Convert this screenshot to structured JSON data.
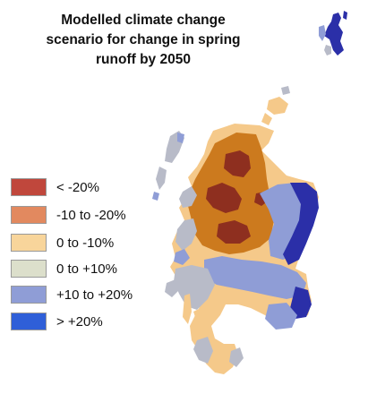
{
  "title": {
    "line1": "Modelled climate change",
    "line2": "scenario for change in spring",
    "line3": "runoff by 2050"
  },
  "legend": [
    {
      "label": "< -20%",
      "color": "#c0473c"
    },
    {
      "label": "-10 to -20%",
      "color": "#e2895f"
    },
    {
      "label": "0 to -10%",
      "color": "#f8d59b"
    },
    {
      "label": "0 to +10%",
      "color": "#dcdfcb"
    },
    {
      "label": "+10 to +20%",
      "color": "#8f9dd6"
    },
    {
      "label": "> +20%",
      "color": "#2f5fd8"
    }
  ],
  "map_colors": {
    "dark_red": "#8e2f1f",
    "orange": "#cc7a1e",
    "light_orange": "#f5c98a",
    "grey": "#b8bbc8",
    "light_blue": "#8f9dd6",
    "dark_blue": "#2b2fa8"
  }
}
